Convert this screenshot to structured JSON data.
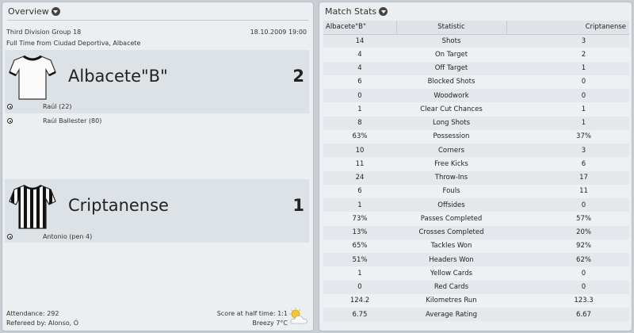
{
  "overview": {
    "title": "Overview",
    "competition": "Third Division Group 18",
    "date_time": "18.10.2009 19:00",
    "venue_line": "Full Time from Ciudad Deportiva, Albacete",
    "home": {
      "name": "Albacete\"B\"",
      "score": "2",
      "kit": "white shirt with black collar",
      "scorers": [
        "Raúl (22)",
        "Raúl Ballester (80)"
      ]
    },
    "away": {
      "name": "Criptanense",
      "score": "1",
      "kit": "black and white vertical stripes",
      "scorers": [
        "Antonio (pen 4)"
      ]
    },
    "attendance": "Attendance: 292",
    "referee": "Refereed by: Alonso, Ó",
    "halftime": "Score at half time: 1:1",
    "weather": "Breezy 7°C",
    "weather_icon": "sun-behind-cloud-icon"
  },
  "match_stats": {
    "title": "Match Stats",
    "headers": {
      "home": "Albacete\"B\"",
      "stat": "Statistic",
      "away": "Criptanense"
    },
    "rows": [
      {
        "home": "14",
        "stat": "Shots",
        "away": "3"
      },
      {
        "home": "4",
        "stat": "On Target",
        "away": "2"
      },
      {
        "home": "4",
        "stat": "Off Target",
        "away": "1"
      },
      {
        "home": "6",
        "stat": "Blocked Shots",
        "away": "0"
      },
      {
        "home": "0",
        "stat": "Woodwork",
        "away": "0"
      },
      {
        "home": "1",
        "stat": "Clear Cut Chances",
        "away": "1"
      },
      {
        "home": "8",
        "stat": "Long Shots",
        "away": "1"
      },
      {
        "home": "63%",
        "stat": "Possession",
        "away": "37%"
      },
      {
        "home": "10",
        "stat": "Corners",
        "away": "3"
      },
      {
        "home": "11",
        "stat": "Free Kicks",
        "away": "6"
      },
      {
        "home": "24",
        "stat": "Throw-Ins",
        "away": "17"
      },
      {
        "home": "6",
        "stat": "Fouls",
        "away": "11"
      },
      {
        "home": "1",
        "stat": "Offsides",
        "away": "0"
      },
      {
        "home": "73%",
        "stat": "Passes Completed",
        "away": "57%"
      },
      {
        "home": "13%",
        "stat": "Crosses Completed",
        "away": "20%"
      },
      {
        "home": "65%",
        "stat": "Tackles Won",
        "away": "92%"
      },
      {
        "home": "51%",
        "stat": "Headers Won",
        "away": "62%"
      },
      {
        "home": "1",
        "stat": "Yellow Cards",
        "away": "0"
      },
      {
        "home": "0",
        "stat": "Red Cards",
        "away": "0"
      },
      {
        "home": "124.2",
        "stat": "Kilometres Run",
        "away": "123.3"
      },
      {
        "home": "6.75",
        "stat": "Average Rating",
        "away": "6.67"
      }
    ]
  }
}
